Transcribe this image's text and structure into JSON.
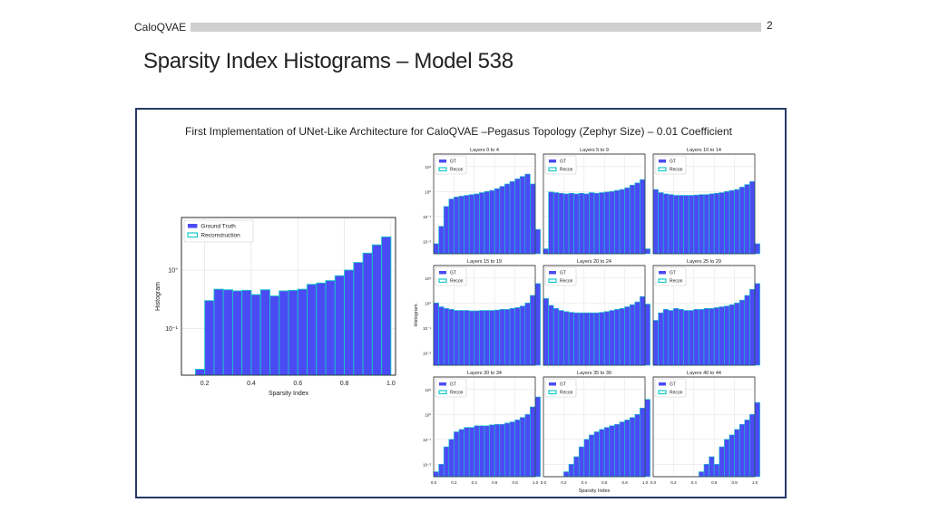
{
  "header": {
    "brand": "CaloQVAE",
    "page_number": "2"
  },
  "slide": {
    "title": "Sparsity Index Histograms – Model 538",
    "figure_caption": "First Implementation of UNet-Like Architecture for CaloQVAE –Pegasus Topology (Zephyr Size) – 0.01 Coefficient"
  },
  "colors": {
    "gt": "#4b4bf5",
    "recon_edge": "#18c8c8",
    "frame": "#243a63",
    "bar": "#d0d0d0"
  },
  "chart_data": [
    {
      "type": "bar",
      "title": "",
      "xlabel": "Sparsity Index",
      "ylabel": "Histogram",
      "yscale": "log",
      "xlim": [
        0.1,
        1.02
      ],
      "ylim_log10": [
        -1.8,
        0.9
      ],
      "xticks": [
        "0.2",
        "0.4",
        "0.6",
        "0.8",
        "1.0"
      ],
      "yticks": [
        {
          "label": "10°",
          "value": 0
        },
        {
          "label": "10⁻¹",
          "value": -1
        }
      ],
      "legend": {
        "position": "top-left",
        "entries": [
          "Ground Truth",
          "Reconstruction"
        ]
      },
      "grid": true,
      "bin_start": 0.16,
      "bin_width": 0.04,
      "series": [
        {
          "name": "Ground Truth",
          "values": [
            0.02,
            0.3,
            0.47,
            0.46,
            0.44,
            0.45,
            0.38,
            0.46,
            0.36,
            0.44,
            0.45,
            0.47,
            0.57,
            0.6,
            0.66,
            0.8,
            1.0,
            1.35,
            1.95,
            2.7,
            3.7
          ]
        }
      ]
    },
    {
      "type": "bar",
      "title": "Layers 0 to 4",
      "yscale": "log",
      "legend": {
        "position": "top-left",
        "entries": [
          "GT",
          "Recon"
        ]
      },
      "yticks": [
        "10¹",
        "10⁰",
        "10⁻¹",
        "10⁻²"
      ],
      "values": [
        0.008,
        0.04,
        0.25,
        0.5,
        0.6,
        0.65,
        0.7,
        0.75,
        0.8,
        0.9,
        1.0,
        1.1,
        1.3,
        1.6,
        2.0,
        2.5,
        3.2,
        4.0,
        5.0,
        2.0,
        0.03
      ]
    },
    {
      "type": "bar",
      "title": "Layers 5 to 9",
      "yscale": "log",
      "legend": {
        "position": "top-left",
        "entries": [
          "GT",
          "Recon"
        ]
      },
      "values": [
        0.005,
        0.95,
        0.9,
        0.85,
        0.8,
        0.85,
        0.8,
        0.85,
        0.8,
        0.9,
        0.85,
        0.9,
        0.95,
        1.0,
        1.1,
        1.2,
        1.4,
        1.8,
        2.2,
        3.0,
        0.005
      ]
    },
    {
      "type": "bar",
      "title": "Layers 10 to 14",
      "yscale": "log",
      "legend": {
        "position": "top-left",
        "entries": [
          "GT",
          "Recon"
        ]
      },
      "values": [
        1.2,
        0.9,
        0.8,
        0.75,
        0.7,
        0.7,
        0.7,
        0.7,
        0.72,
        0.75,
        0.75,
        0.8,
        0.85,
        0.9,
        1.0,
        1.1,
        1.2,
        1.5,
        1.9,
        2.5,
        0.008
      ]
    },
    {
      "type": "bar",
      "title": "Layers 15 to 19",
      "yscale": "log",
      "legend": {
        "position": "top-left",
        "entries": [
          "GT",
          "Recon"
        ]
      },
      "yticks": [
        "10¹",
        "10⁰",
        "10⁻¹",
        "10⁻²"
      ],
      "ylabel": "Histogram",
      "values": [
        1.0,
        0.7,
        0.6,
        0.55,
        0.5,
        0.5,
        0.5,
        0.48,
        0.48,
        0.5,
        0.5,
        0.5,
        0.52,
        0.55,
        0.55,
        0.6,
        0.65,
        0.75,
        1.0,
        2.0,
        6.0
      ]
    },
    {
      "type": "bar",
      "title": "Layers 20 to 24",
      "yscale": "log",
      "legend": {
        "position": "top-left",
        "entries": [
          "GT",
          "Recon"
        ]
      },
      "values": [
        1.5,
        0.8,
        0.6,
        0.5,
        0.45,
        0.42,
        0.4,
        0.4,
        0.4,
        0.4,
        0.4,
        0.42,
        0.45,
        0.5,
        0.55,
        0.6,
        0.7,
        0.85,
        1.1,
        1.8,
        0.9
      ]
    },
    {
      "type": "bar",
      "title": "Layers 25 to 29",
      "yscale": "log",
      "legend": {
        "position": "top-left",
        "entries": [
          "GT",
          "Recon"
        ]
      },
      "values": [
        0.2,
        0.4,
        0.55,
        0.5,
        0.6,
        0.55,
        0.5,
        0.5,
        0.55,
        0.55,
        0.6,
        0.6,
        0.65,
        0.7,
        0.75,
        0.85,
        1.0,
        1.3,
        2.0,
        3.5,
        6.0
      ]
    },
    {
      "type": "bar",
      "title": "Layers 30 to 34",
      "yscale": "log",
      "legend": {
        "position": "top-left",
        "entries": [
          "GT",
          "Recon"
        ]
      },
      "yticks": [
        "10¹",
        "10⁰",
        "10⁻¹",
        "10⁻²"
      ],
      "xticks": [
        "0.0",
        "0.2",
        "0.4",
        "0.6",
        "0.8",
        "1.0"
      ],
      "values": [
        0.005,
        0.01,
        0.05,
        0.1,
        0.2,
        0.25,
        0.3,
        0.3,
        0.35,
        0.35,
        0.35,
        0.38,
        0.4,
        0.4,
        0.45,
        0.5,
        0.6,
        0.75,
        1.0,
        2.0,
        5.0
      ]
    },
    {
      "type": "bar",
      "title": "Layers 35 to 39",
      "yscale": "log",
      "legend": {
        "position": "top-left",
        "entries": [
          "GT",
          "Recon"
        ]
      },
      "xticks": [
        "0.0",
        "0.2",
        "0.4",
        "0.6",
        "0.8",
        "1.0"
      ],
      "xlabel": "Sparsity Index",
      "values": [
        0.0,
        0.003,
        0.0,
        0.0,
        0.005,
        0.01,
        0.02,
        0.05,
        0.1,
        0.15,
        0.2,
        0.25,
        0.3,
        0.35,
        0.4,
        0.5,
        0.6,
        0.75,
        1.0,
        1.8,
        4.0
      ]
    },
    {
      "type": "bar",
      "title": "Layers 40 to 44",
      "yscale": "log",
      "legend": {
        "position": "top-left",
        "entries": [
          "GT",
          "Recon"
        ]
      },
      "xticks": [
        "0.0",
        "0.2",
        "0.4",
        "0.6",
        "0.8",
        "1.0"
      ],
      "values": [
        0.0,
        0.0,
        0.0,
        0.0,
        0.0,
        0.0,
        0.0,
        0.0,
        0.003,
        0.005,
        0.01,
        0.02,
        0.01,
        0.05,
        0.1,
        0.15,
        0.25,
        0.4,
        0.6,
        1.0,
        3.0
      ]
    }
  ]
}
